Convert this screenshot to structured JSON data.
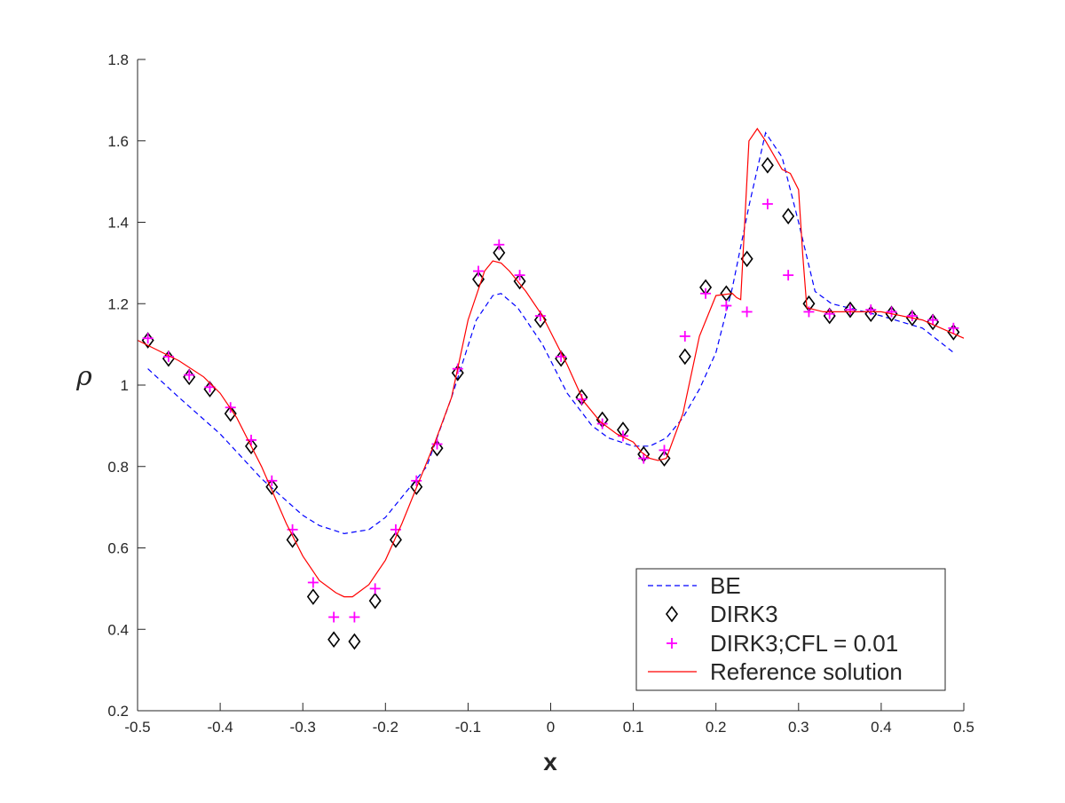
{
  "chart_data": {
    "type": "line",
    "xlabel": "x",
    "ylabel": "ρ",
    "xlim": [
      -0.5,
      0.5
    ],
    "ylim": [
      0.2,
      1.8
    ],
    "xticks": [
      -0.5,
      -0.4,
      -0.3,
      -0.2,
      -0.1,
      0,
      0.1,
      0.2,
      0.3,
      0.4,
      0.5
    ],
    "xtick_labels": [
      "-0.5",
      "-0.4",
      "-0.3",
      "-0.2",
      "-0.1",
      "0",
      "0.1",
      "0.2",
      "0.3",
      "0.4",
      "0.5"
    ],
    "yticks": [
      0.2,
      0.4,
      0.6,
      0.8,
      1.0,
      1.2,
      1.4,
      1.6,
      1.8
    ],
    "ytick_labels": [
      "0.2",
      "0.4",
      "0.6",
      "0.8",
      "1",
      "1.2",
      "1.4",
      "1.6",
      "1.8"
    ],
    "grid": false,
    "legend": {
      "placement": "bottom-right"
    },
    "series": [
      {
        "name": "BE",
        "style": "dashed-line",
        "color": "#0000ff",
        "x": [
          -0.4875,
          -0.45,
          -0.4,
          -0.35,
          -0.3,
          -0.28,
          -0.25,
          -0.22,
          -0.2,
          -0.15,
          -0.12,
          -0.09,
          -0.07,
          -0.06,
          -0.04,
          -0.01,
          0.02,
          0.05,
          0.07,
          0.1,
          0.12,
          0.14,
          0.16,
          0.18,
          0.2,
          0.22,
          0.24,
          0.26,
          0.28,
          0.3,
          0.32,
          0.34,
          0.36,
          0.4,
          0.45,
          0.4875
        ],
        "y": [
          1.04,
          0.97,
          0.88,
          0.77,
          0.68,
          0.655,
          0.635,
          0.645,
          0.675,
          0.8,
          0.97,
          1.16,
          1.22,
          1.225,
          1.19,
          1.1,
          0.98,
          0.9,
          0.87,
          0.85,
          0.85,
          0.87,
          0.92,
          0.99,
          1.08,
          1.24,
          1.44,
          1.62,
          1.56,
          1.4,
          1.23,
          1.2,
          1.19,
          1.17,
          1.14,
          1.08
        ]
      },
      {
        "name": "DIRK3",
        "style": "diamond-marker",
        "color": "#000000",
        "x": [
          -0.4875,
          -0.4625,
          -0.4375,
          -0.4125,
          -0.3875,
          -0.3625,
          -0.3375,
          -0.3125,
          -0.2875,
          -0.2625,
          -0.2375,
          -0.2125,
          -0.1875,
          -0.1625,
          -0.1375,
          -0.1125,
          -0.0875,
          -0.0625,
          -0.0375,
          -0.0125,
          0.0125,
          0.0375,
          0.0625,
          0.0875,
          0.1125,
          0.1375,
          0.1625,
          0.1875,
          0.2125,
          0.2375,
          0.2625,
          0.2875,
          0.3125,
          0.3375,
          0.3625,
          0.3875,
          0.4125,
          0.4375,
          0.4625,
          0.4875
        ],
        "y": [
          1.11,
          1.065,
          1.02,
          0.99,
          0.93,
          0.85,
          0.75,
          0.62,
          0.48,
          0.375,
          0.37,
          0.47,
          0.62,
          0.75,
          0.845,
          1.03,
          1.26,
          1.325,
          1.255,
          1.16,
          1.065,
          0.97,
          0.915,
          0.89,
          0.83,
          0.82,
          1.07,
          1.24,
          1.225,
          1.31,
          1.54,
          1.415,
          1.2,
          1.17,
          1.185,
          1.175,
          1.175,
          1.165,
          1.155,
          1.13
        ]
      },
      {
        "name": "DIRK3;CFL = 0.01",
        "style": "plus-marker",
        "color": "#ff00ff",
        "x": [
          -0.4875,
          -0.4625,
          -0.4375,
          -0.4125,
          -0.3875,
          -0.3625,
          -0.3375,
          -0.3125,
          -0.2875,
          -0.2625,
          -0.2375,
          -0.2125,
          -0.1875,
          -0.1625,
          -0.1375,
          -0.1125,
          -0.0875,
          -0.0625,
          -0.0375,
          -0.0125,
          0.0125,
          0.0375,
          0.0625,
          0.0875,
          0.1125,
          0.1375,
          0.1625,
          0.1875,
          0.2125,
          0.2375,
          0.2625,
          0.2875,
          0.3125,
          0.3375,
          0.3625,
          0.3875,
          0.4125,
          0.4375,
          0.4625,
          0.4875
        ],
        "y": [
          1.115,
          1.07,
          1.025,
          0.995,
          0.945,
          0.865,
          0.765,
          0.645,
          0.515,
          0.43,
          0.43,
          0.5,
          0.645,
          0.765,
          0.855,
          1.04,
          1.28,
          1.345,
          1.27,
          1.17,
          1.07,
          0.965,
          0.905,
          0.875,
          0.82,
          0.84,
          1.12,
          1.225,
          1.195,
          1.18,
          1.445,
          1.27,
          1.18,
          1.175,
          1.185,
          1.185,
          1.18,
          1.17,
          1.16,
          1.14
        ]
      },
      {
        "name": "Reference solution",
        "style": "solid-line",
        "color": "#ff0000",
        "x": [
          -0.5,
          -0.45,
          -0.42,
          -0.4,
          -0.38,
          -0.35,
          -0.32,
          -0.3,
          -0.28,
          -0.26,
          -0.25,
          -0.24,
          -0.22,
          -0.2,
          -0.18,
          -0.16,
          -0.14,
          -0.12,
          -0.1,
          -0.08,
          -0.07,
          -0.06,
          -0.05,
          -0.03,
          -0.01,
          0,
          0.02,
          0.04,
          0.06,
          0.08,
          0.1,
          0.11,
          0.12,
          0.13,
          0.14,
          0.16,
          0.18,
          0.2,
          0.22,
          0.225,
          0.23,
          0.24,
          0.25,
          0.26,
          0.28,
          0.29,
          0.3,
          0.305,
          0.31,
          0.33,
          0.35,
          0.4,
          0.45,
          0.5
        ],
        "y": [
          1.11,
          1.06,
          1.02,
          0.98,
          0.92,
          0.8,
          0.66,
          0.58,
          0.52,
          0.49,
          0.48,
          0.48,
          0.51,
          0.57,
          0.66,
          0.76,
          0.86,
          0.97,
          1.16,
          1.28,
          1.305,
          1.3,
          1.28,
          1.23,
          1.17,
          1.13,
          1.05,
          0.96,
          0.91,
          0.88,
          0.86,
          0.835,
          0.82,
          0.815,
          0.82,
          0.93,
          1.12,
          1.22,
          1.225,
          1.215,
          1.21,
          1.6,
          1.63,
          1.6,
          1.53,
          1.52,
          1.48,
          1.32,
          1.19,
          1.18,
          1.18,
          1.18,
          1.16,
          1.115
        ]
      }
    ]
  }
}
